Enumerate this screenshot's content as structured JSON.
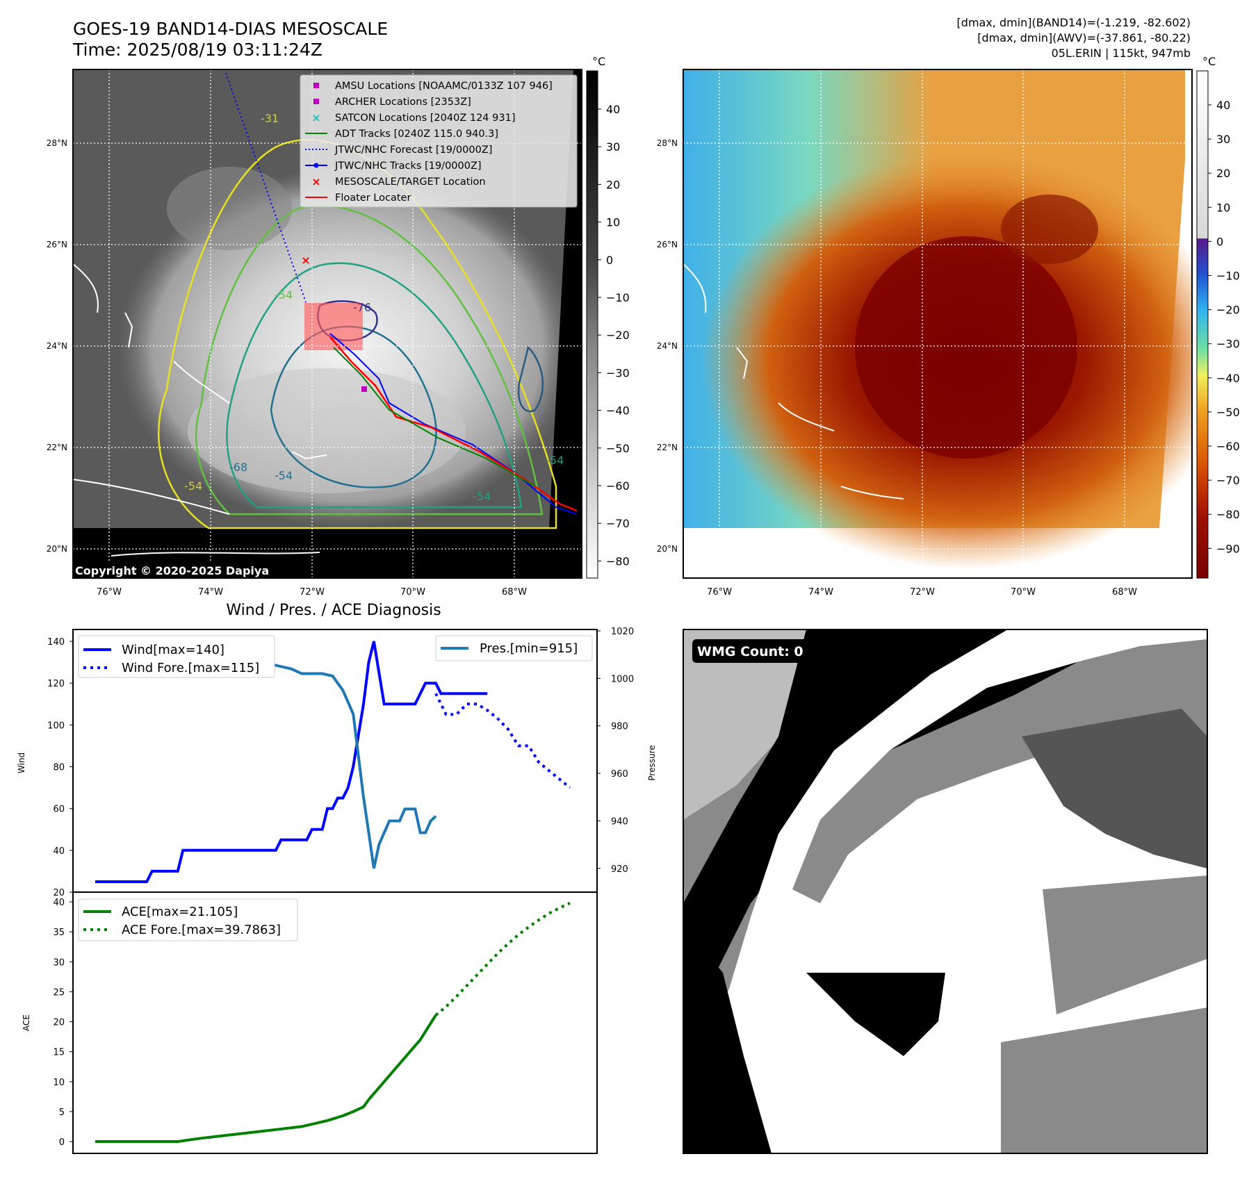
{
  "header": {
    "title_line1": "GOES-19 BAND14-DIAS MESOSCALE",
    "title_line2": "Time: 2025/08/19 03:11:24Z",
    "info_line1": "[dmax, dmin](BAND14)=(-1.219, -82.602)",
    "info_line2": "[dmax, dmin](AWV)=(-37.861, -80.22)",
    "info_line3": "05L.ERIN | 115kt, 947mb"
  },
  "map": {
    "lon_labels": [
      "76°W",
      "74°W",
      "72°W",
      "70°W",
      "68°W"
    ],
    "lat_labels": [
      "28°N",
      "26°N",
      "24°N",
      "22°N",
      "20°N"
    ],
    "copyright": "Copyright © 2020-2025 Dapiya",
    "contour_labels": [
      "-31",
      "-76",
      "-54",
      "-68",
      "-54",
      "-54",
      "-54",
      "-54"
    ],
    "legend": [
      {
        "label": "AMSU Locations [NOAAMC/0133Z 107 946]",
        "marker": "square",
        "color": "#c000c0"
      },
      {
        "label": "ARCHER Locations [2353Z]",
        "marker": "square",
        "color": "#c000c0"
      },
      {
        "label": "SATCON Locations [2040Z 124 931]",
        "marker": "x",
        "color": "#20c0c0"
      },
      {
        "label": "ADT Tracks [0240Z 115.0 940.3]",
        "marker": "line",
        "color": "#008000"
      },
      {
        "label": "JTWC/NHC Forecast [19/0000Z]",
        "marker": "dotted",
        "color": "#0000ff"
      },
      {
        "label": "JTWC/NHC Tracks [19/0000Z]",
        "marker": "line-dot",
        "color": "#0000ff"
      },
      {
        "label": "MESOSCALE/TARGET Location",
        "marker": "x",
        "color": "#ff0000"
      },
      {
        "label": "Floater Locater",
        "marker": "line",
        "color": "#ff0000"
      }
    ]
  },
  "colorbar_gray": {
    "unit": "°C",
    "ticks": [
      "40",
      "30",
      "20",
      "10",
      "0",
      "−10",
      "−20",
      "−30",
      "−40",
      "−50",
      "−60",
      "−70",
      "−80"
    ]
  },
  "colorbar_color": {
    "unit": "°C",
    "ticks": [
      "40",
      "30",
      "20",
      "10",
      "0",
      "−10",
      "−20",
      "−30",
      "−40",
      "−50",
      "−60",
      "−70",
      "−80",
      "−90"
    ]
  },
  "wmg": {
    "label": "WMG Count: 0"
  },
  "colors": {
    "wind": "#0000ff",
    "pressure": "#1f77b4",
    "ace": "#008000",
    "floater": "#ff0000"
  },
  "chart_data": [
    {
      "type": "line",
      "title": "Wind / Pres. / ACE Diagnosis",
      "ylabel": "Wind",
      "ylim": [
        20,
        145
      ],
      "yticks": [
        20,
        40,
        60,
        80,
        100,
        120,
        140
      ],
      "y2label": "Pressure",
      "y2lim": [
        910,
        1020
      ],
      "y2ticks": [
        920,
        940,
        960,
        980,
        1000,
        1020
      ],
      "xlim": [
        0,
        92
      ],
      "legend_left": [
        "Wind[max=140]",
        "Wind Fore.[max=115]"
      ],
      "legend_right": [
        "Pres.[min=915]"
      ],
      "series": [
        {
          "name": "Wind[max=140]",
          "axis": "left",
          "style": "solid",
          "color": "#0000ff",
          "x": [
            0,
            10,
            11,
            16,
            17,
            23,
            24,
            35,
            36,
            39,
            41,
            42,
            44,
            45,
            46,
            47,
            48,
            49,
            50,
            51,
            52,
            53,
            54,
            55,
            56,
            57,
            58,
            59,
            60,
            61,
            62,
            63,
            64,
            65,
            66,
            67,
            68,
            69,
            70,
            71,
            72,
            73,
            74,
            75,
            76
          ],
          "y": [
            25,
            25,
            30,
            30,
            40,
            40,
            40,
            40,
            45,
            45,
            45,
            50,
            50,
            60,
            60,
            65,
            65,
            70,
            80,
            95,
            110,
            130,
            140,
            125,
            110,
            110,
            110,
            110,
            110,
            110,
            110,
            115,
            120,
            120,
            120,
            115,
            115,
            115,
            115,
            115,
            115,
            115,
            115,
            115,
            115
          ]
        },
        {
          "name": "Wind Fore.[max=115]",
          "axis": "left",
          "style": "dotted",
          "color": "#0000ff",
          "x": [
            66,
            68,
            70,
            72,
            74,
            76,
            78,
            80,
            82,
            84,
            86,
            88,
            90,
            92
          ],
          "y": [
            115,
            105,
            105,
            110,
            110,
            107,
            103,
            98,
            90,
            90,
            82,
            78,
            74,
            70
          ]
        },
        {
          "name": "Pres.[min=915]",
          "axis": "right",
          "style": "solid",
          "color": "#1f77b4",
          "x": [
            0,
            2,
            4,
            6,
            8,
            10,
            12,
            14,
            16,
            18,
            20,
            22,
            24,
            26,
            28,
            30,
            32,
            34,
            36,
            38,
            40,
            42,
            44,
            46,
            48,
            50,
            52,
            53,
            54,
            55,
            56,
            57,
            58,
            59,
            60,
            61,
            62,
            63,
            64,
            65,
            66
          ],
          "y": [
            1013,
            1013,
            1009,
            1009,
            1008,
            1008,
            1008,
            1008,
            1007,
            1007,
            1008,
            1007,
            1007,
            1007,
            1006,
            1006,
            1006,
            1006,
            1005,
            1004,
            1002,
            1002,
            1002,
            1001,
            995,
            985,
            950,
            935,
            920,
            930,
            935,
            940,
            940,
            940,
            945,
            945,
            945,
            935,
            935,
            940,
            942
          ]
        }
      ]
    },
    {
      "type": "line",
      "ylabel": "ACE",
      "ylim": [
        -1,
        40
      ],
      "yticks": [
        0,
        5,
        10,
        15,
        20,
        25,
        30,
        35,
        40
      ],
      "xlim": [
        0,
        92
      ],
      "legend": [
        "ACE[max=21.105]",
        "ACE Fore.[max=39.7863]"
      ],
      "series": [
        {
          "name": "ACE[max=21.105]",
          "style": "solid",
          "color": "#008000",
          "x": [
            0,
            10,
            16,
            20,
            25,
            30,
            35,
            40,
            45,
            48,
            50,
            52,
            53,
            55,
            57,
            60,
            63,
            66
          ],
          "y": [
            0,
            0,
            0,
            0.5,
            1,
            1.5,
            2,
            2.5,
            3.5,
            4.3,
            5.0,
            5.8,
            7,
            9,
            11,
            14,
            17,
            21.1
          ]
        },
        {
          "name": "ACE Fore.[max=39.7863]",
          "style": "dotted",
          "color": "#008000",
          "x": [
            66,
            68,
            70,
            72,
            74,
            76,
            78,
            80,
            82,
            84,
            86,
            88,
            90,
            92
          ],
          "y": [
            21.1,
            22.5,
            24.2,
            26.0,
            27.8,
            29.6,
            31.4,
            33.0,
            34.5,
            35.8,
            37.0,
            38.1,
            39.0,
            39.79
          ]
        }
      ]
    }
  ]
}
